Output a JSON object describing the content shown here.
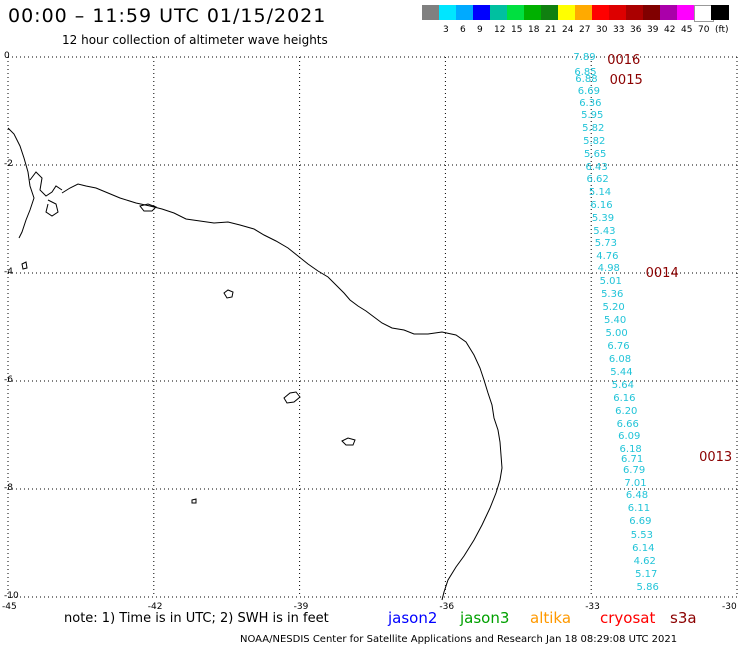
{
  "header": {
    "title": "00:00 – 11:59 UTC 01/15/2021",
    "subtitle": "12 hour collection of altimeter wave heights"
  },
  "legend": {
    "items": [
      {
        "label": "",
        "color": "#808080"
      },
      {
        "label": "3",
        "color": "#00e6ff"
      },
      {
        "label": "6",
        "color": "#00aaff"
      },
      {
        "label": "9",
        "color": "#0000ff"
      },
      {
        "label": "12",
        "color": "#00c0a0"
      },
      {
        "label": "15",
        "color": "#00e040"
      },
      {
        "label": "18",
        "color": "#00b000"
      },
      {
        "label": "21",
        "color": "#108010"
      },
      {
        "label": "24",
        "color": "#ffff00"
      },
      {
        "label": "27",
        "color": "#ffaa00"
      },
      {
        "label": "30",
        "color": "#ff0000"
      },
      {
        "label": "33",
        "color": "#dd0000"
      },
      {
        "label": "36",
        "color": "#aa0000"
      },
      {
        "label": "39",
        "color": "#800000"
      },
      {
        "label": "42",
        "color": "#aa00aa"
      },
      {
        "label": "45",
        "color": "#ff00ff"
      },
      {
        "label": "70",
        "color": "#ffffff"
      },
      {
        "label": "(ft)",
        "color": "#000000"
      }
    ]
  },
  "map": {
    "lon_ticks": [
      "-45",
      "-42",
      "-39",
      "-36",
      "-33",
      "-30"
    ],
    "lat_ticks": [
      "0",
      "-2",
      "-4",
      "-6",
      "-8",
      "-10"
    ],
    "observations": [
      {
        "lon": -33.12,
        "lat": -0.02,
        "value": "7.89"
      },
      {
        "lon": -33.1,
        "lat": -0.29,
        "value": "6.85"
      },
      {
        "lon": -33.08,
        "lat": -0.43,
        "value": "6.88"
      },
      {
        "lon": -33.03,
        "lat": -0.65,
        "value": "6.69"
      },
      {
        "lon": -33.0,
        "lat": -0.87,
        "value": "6.36"
      },
      {
        "lon": -32.96,
        "lat": -1.09,
        "value": "5.95"
      },
      {
        "lon": -32.94,
        "lat": -1.33,
        "value": "5.82"
      },
      {
        "lon": -32.92,
        "lat": -1.57,
        "value": "5.82"
      },
      {
        "lon": -32.9,
        "lat": -1.82,
        "value": "5.65"
      },
      {
        "lon": -32.87,
        "lat": -2.05,
        "value": "6.43"
      },
      {
        "lon": -32.85,
        "lat": -2.28,
        "value": "6.62"
      },
      {
        "lon": -32.8,
        "lat": -2.52,
        "value": "5.14"
      },
      {
        "lon": -32.77,
        "lat": -2.76,
        "value": "6.16"
      },
      {
        "lon": -32.74,
        "lat": -3.0,
        "value": "5.39"
      },
      {
        "lon": -32.71,
        "lat": -3.24,
        "value": "5.43"
      },
      {
        "lon": -32.68,
        "lat": -3.47,
        "value": "5.73"
      },
      {
        "lon": -32.65,
        "lat": -3.71,
        "value": "4.76"
      },
      {
        "lon": -32.62,
        "lat": -3.93,
        "value": "4.98"
      },
      {
        "lon": -32.58,
        "lat": -4.17,
        "value": "5.01"
      },
      {
        "lon": -32.55,
        "lat": -4.41,
        "value": "5.36"
      },
      {
        "lon": -32.52,
        "lat": -4.65,
        "value": "5.20"
      },
      {
        "lon": -32.49,
        "lat": -4.89,
        "value": "5.40"
      },
      {
        "lon": -32.46,
        "lat": -5.13,
        "value": "5.00"
      },
      {
        "lon": -32.42,
        "lat": -5.37,
        "value": "6.76"
      },
      {
        "lon": -32.39,
        "lat": -5.61,
        "value": "6.08"
      },
      {
        "lon": -32.36,
        "lat": -5.85,
        "value": "5.44"
      },
      {
        "lon": -32.33,
        "lat": -6.09,
        "value": "5.64"
      },
      {
        "lon": -32.3,
        "lat": -6.33,
        "value": "6.16"
      },
      {
        "lon": -32.26,
        "lat": -6.57,
        "value": "6.20"
      },
      {
        "lon": -32.23,
        "lat": -6.81,
        "value": "6.66"
      },
      {
        "lon": -32.2,
        "lat": -7.04,
        "value": "6.09"
      },
      {
        "lon": -32.17,
        "lat": -7.28,
        "value": "6.18"
      },
      {
        "lon": -32.14,
        "lat": -7.47,
        "value": "6.71"
      },
      {
        "lon": -32.1,
        "lat": -7.67,
        "value": "6.79"
      },
      {
        "lon": -32.07,
        "lat": -7.9,
        "value": "7.01"
      },
      {
        "lon": -32.04,
        "lat": -8.13,
        "value": "6.48"
      },
      {
        "lon": -32.0,
        "lat": -8.37,
        "value": "6.11"
      },
      {
        "lon": -31.97,
        "lat": -8.62,
        "value": "6.69"
      },
      {
        "lon": -31.94,
        "lat": -8.87,
        "value": "5.53"
      },
      {
        "lon": -31.91,
        "lat": -9.12,
        "value": "6.14"
      },
      {
        "lon": -31.88,
        "lat": -9.36,
        "value": "4.62"
      },
      {
        "lon": -31.85,
        "lat": -9.6,
        "value": "5.17"
      },
      {
        "lon": -31.82,
        "lat": -9.84,
        "value": "5.86"
      }
    ],
    "time_labels": [
      {
        "lon": -32.67,
        "lat": -0.05,
        "text": "0016"
      },
      {
        "lon": -32.62,
        "lat": -0.42,
        "text": "0015"
      },
      {
        "lon": -31.88,
        "lat": -4.0,
        "text": "0014"
      },
      {
        "lon": -30.78,
        "lat": -7.4,
        "text": "0013"
      }
    ]
  },
  "footer": {
    "note": "note: 1) Time is in UTC; 2) SWH is in feet",
    "satellites": [
      {
        "name": "jason2",
        "color": "#0000ff"
      },
      {
        "name": "jason3",
        "color": "#00a000"
      },
      {
        "name": "altika",
        "color": "#ff9900"
      },
      {
        "name": "cryosat",
        "color": "#ff0000"
      },
      {
        "name": "s3a",
        "color": "#8b0000"
      }
    ],
    "credit": "NOAA/NESDIS Center for Satellite Applications and Research   Jan 18 08:29:08 UTC 2021"
  }
}
